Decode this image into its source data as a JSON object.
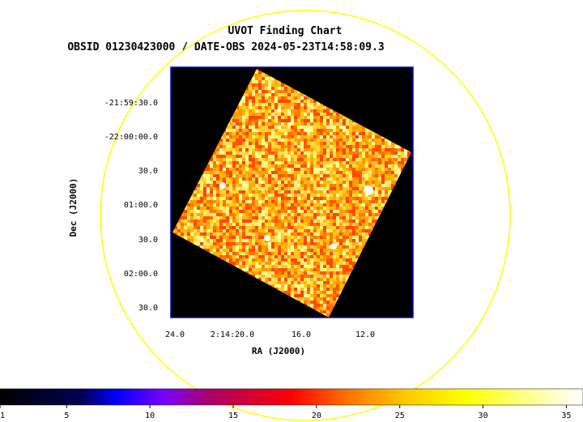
{
  "chart_data": {
    "type": "heatmap",
    "title": "UVOT Finding Chart",
    "subtitle": "OBSID 01230423000 / DATE-OBS 2024-05-23T14:58:09.3",
    "xlabel": "RA (J2000)",
    "ylabel": "Dec (J2000)",
    "x_tick_labels": [
      "24.0",
      "2:14:20.0",
      "16.0",
      "12.0"
    ],
    "y_tick_labels": [
      "-21:59:30.0",
      "-22:00:00.0",
      "30.0",
      "01:00.0",
      "30.0",
      "02:00.0",
      "30.0"
    ],
    "colorbar": {
      "ticks": [
        1,
        5,
        10,
        15,
        20,
        25,
        30,
        35
      ],
      "range": [
        1,
        36
      ],
      "colormap": "heat"
    },
    "colors": {
      "field_circle": "#ffff00",
      "frame": "#0000cc",
      "background": "#000000"
    }
  }
}
